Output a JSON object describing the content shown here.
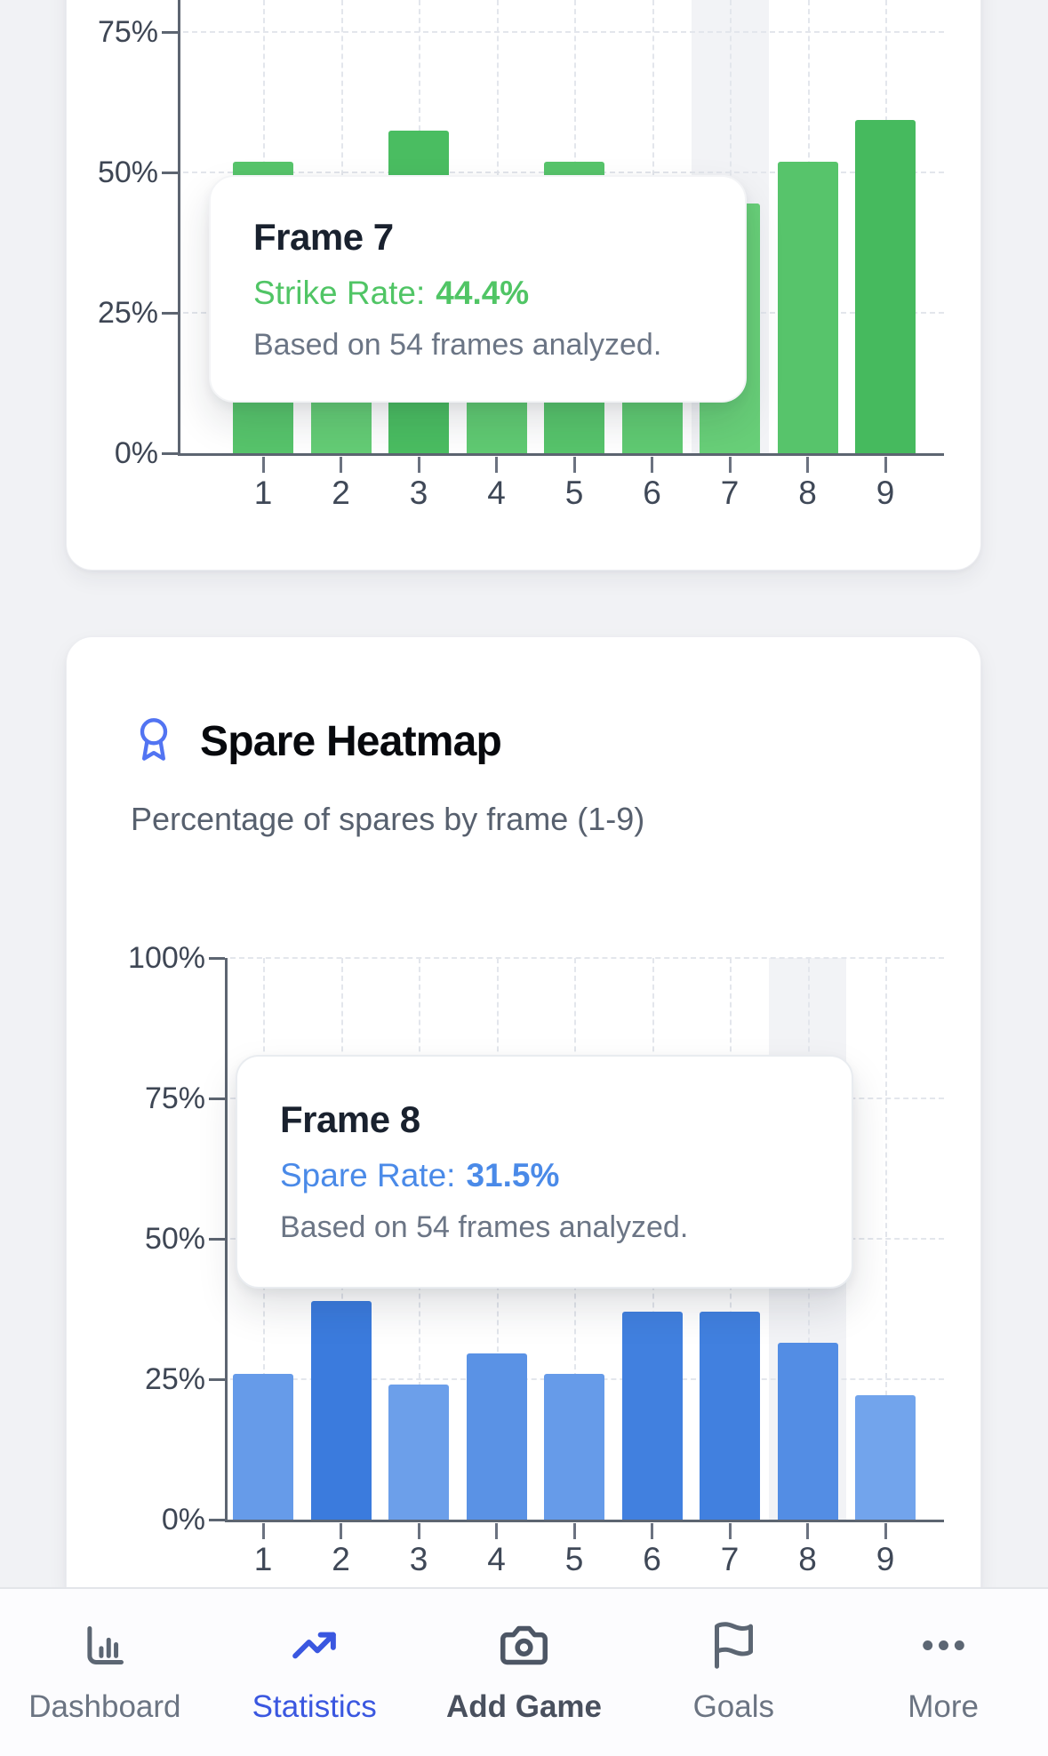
{
  "page": {
    "background": "#f1f2f5"
  },
  "chart_data": [
    {
      "type": "bar",
      "name": "strike-rate-by-frame",
      "categories": [
        "1",
        "2",
        "3",
        "4",
        "5",
        "6",
        "7",
        "8",
        "9"
      ],
      "values": [
        51.9,
        46.3,
        57.4,
        48.1,
        51.9,
        48.1,
        44.4,
        51.9,
        59.3
      ],
      "yticks": [
        {
          "label": "75%",
          "v": 75
        },
        {
          "label": "50%",
          "v": 50
        },
        {
          "label": "25%",
          "v": 25
        },
        {
          "label": "0%",
          "v": 0
        }
      ],
      "ylim": [
        0,
        100
      ],
      "grid": true,
      "hovered_frame": 7,
      "colors": {
        "low": "#68cf78",
        "high": "#46ba5e",
        "text": "#50c565"
      },
      "tooltip": {
        "title": "Frame 7",
        "label": "Strike Rate:",
        "value": "44.4%",
        "note": "Based on 54 frames analyzed."
      }
    },
    {
      "type": "bar",
      "name": "spare-rate-by-frame",
      "categories": [
        "1",
        "2",
        "3",
        "4",
        "5",
        "6",
        "7",
        "8",
        "9"
      ],
      "values": [
        25.9,
        38.9,
        24.1,
        29.6,
        25.9,
        37.0,
        37.0,
        31.5,
        22.2
      ],
      "yticks": [
        {
          "label": "100%",
          "v": 100
        },
        {
          "label": "75%",
          "v": 75
        },
        {
          "label": "50%",
          "v": 50
        },
        {
          "label": "25%",
          "v": 25
        },
        {
          "label": "0%",
          "v": 0
        }
      ],
      "ylim": [
        0,
        100
      ],
      "grid": true,
      "hovered_frame": 8,
      "colors": {
        "low": "#72a4ec",
        "high": "#3b7bdd",
        "text": "#4a8ae8"
      },
      "tooltip": {
        "title": "Frame 8",
        "label": "Spare Rate:",
        "value": "31.5%",
        "note": "Based on 54 frames analyzed."
      }
    }
  ],
  "spare_card": {
    "icon": "award-icon",
    "icon_color": "#5274f2",
    "title": "Spare Heatmap",
    "subtitle": "Percentage of spares by frame (1-9)"
  },
  "tabbar": {
    "active_color": "#3a57e0",
    "items": [
      {
        "id": "dashboard",
        "label": "Dashboard",
        "icon": "bar-chart-icon",
        "active": false
      },
      {
        "id": "statistics",
        "label": "Statistics",
        "icon": "trending-up-icon",
        "active": true
      },
      {
        "id": "add-game",
        "label": "Add Game",
        "icon": "camera-icon",
        "active": false
      },
      {
        "id": "goals",
        "label": "Goals",
        "icon": "flag-icon",
        "active": false
      },
      {
        "id": "more",
        "label": "More",
        "icon": "ellipsis-icon",
        "active": false
      }
    ]
  }
}
